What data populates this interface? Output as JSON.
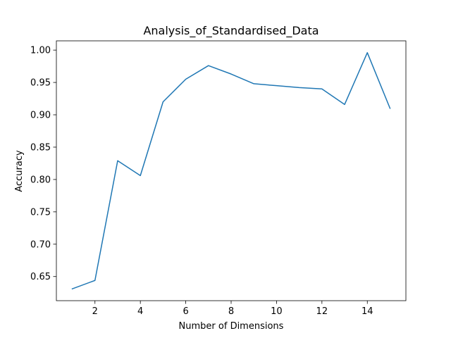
{
  "chart_data": {
    "type": "line",
    "title": "Analysis_of_Standardised_Data",
    "xlabel": "Number of Dimensions",
    "ylabel": "Accuracy",
    "x": [
      1,
      2,
      3,
      4,
      5,
      6,
      7,
      8,
      9,
      10,
      11,
      12,
      13,
      14,
      15
    ],
    "series": [
      {
        "values": [
          0.631,
          0.644,
          0.829,
          0.806,
          0.92,
          0.955,
          0.976,
          0.963,
          0.948,
          0.945,
          0.942,
          0.94,
          0.916,
          0.996,
          0.91
        ],
        "color": "#1f77b4"
      }
    ],
    "xlim": [
      0.3,
      15.7
    ],
    "ylim": [
      0.6127,
      1.0143
    ],
    "xticks": [
      2,
      4,
      6,
      8,
      10,
      12,
      14
    ],
    "xtick_labels": [
      "2",
      "4",
      "6",
      "8",
      "10",
      "12",
      "14"
    ],
    "yticks": [
      0.65,
      0.7,
      0.75,
      0.8,
      0.85,
      0.9,
      0.95,
      1.0
    ],
    "ytick_labels": [
      "0.65",
      "0.70",
      "0.75",
      "0.80",
      "0.85",
      "0.90",
      "0.95",
      "1.00"
    ],
    "grid": false,
    "legend": "none"
  }
}
